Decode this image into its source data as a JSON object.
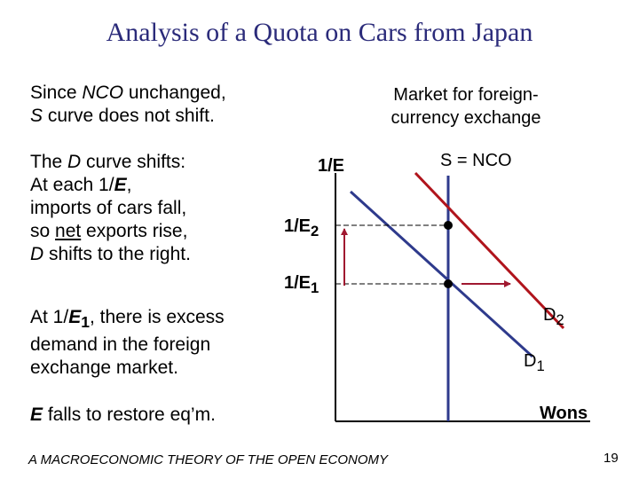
{
  "title": "Analysis of a Quota on Cars from Japan",
  "para1": {
    "line1_pre": "Since ",
    "line1_nco": "NCO",
    "line1_post": " unchanged,",
    "line2_s": "S",
    "line2_post": " curve does not shift."
  },
  "para2": {
    "l1_pre": "The ",
    "l1_d": "D",
    "l1_post": " curve shifts:",
    "l2_pre": "At each 1/",
    "l2_e": "E",
    "l2_post": ",",
    "l3": "imports of cars fall,",
    "l4_pre": "so ",
    "l4_net": "net",
    "l4_post": " exports rise,",
    "l5_d": "D",
    "l5_post": " shifts to the right."
  },
  "para3": {
    "l1_pre": "At 1/",
    "l1_e": "E",
    "l1_sub": "1",
    "l1_post": ", there is excess",
    "l2": "demand in the foreign",
    "l3": "exchange market."
  },
  "para4": {
    "e": "E",
    "post": " falls to restore eq’m."
  },
  "market_title_l1": "Market for foreign-",
  "market_title_l2": "currency exchange",
  "diagram": {
    "y_axis_label": "1/E",
    "level2_label": "1/E",
    "level2_sub": "2",
    "level1_label": "1/E",
    "level1_sub": "1",
    "supply_label": "S = NCO",
    "demand2_label": "D",
    "demand2_sub": "2",
    "demand1_label": "D",
    "demand1_sub": "1",
    "x_axis_label": "Wons",
    "colors": {
      "axis": "#000000",
      "supply": "#2e3a8c",
      "demand1": "#2e3a8c",
      "demand2": "#b0141c",
      "arrow": "#a01830",
      "dash": "#000000"
    }
  },
  "footer": "A MACROECONOMIC THEORY OF THE OPEN ECONOMY",
  "page_number": "19"
}
